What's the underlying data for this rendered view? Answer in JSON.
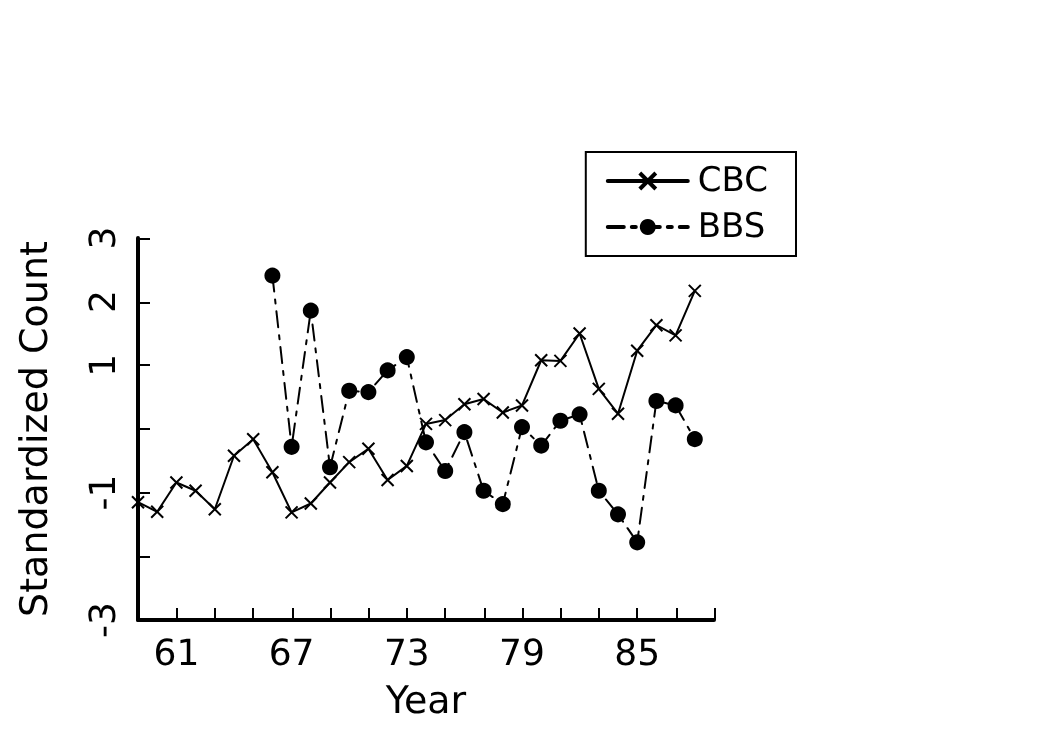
{
  "chart_data": {
    "type": "line",
    "xlabel": "Year",
    "ylabel": "Standardized Count",
    "x": [
      59,
      60,
      61,
      62,
      63,
      64,
      65,
      66,
      67,
      68,
      69,
      70,
      71,
      72,
      73,
      74,
      75,
      76,
      77,
      78,
      79,
      80,
      81,
      82,
      83,
      84,
      85,
      86,
      87,
      88
    ],
    "series": [
      {
        "name": "CBC",
        "color": "#000000",
        "marker": "cross",
        "line_style": "solid",
        "values": [
          -1.15,
          -1.3,
          -0.84,
          -0.97,
          -1.26,
          -0.42,
          -0.16,
          -0.68,
          -1.31,
          -1.17,
          -0.84,
          -0.52,
          -0.31,
          -0.8,
          -0.58,
          0.08,
          0.14,
          0.39,
          0.47,
          0.26,
          0.37,
          1.08,
          1.07,
          1.5,
          0.63,
          0.24,
          1.23,
          1.63,
          1.47,
          2.17
        ]
      },
      {
        "name": "BBS",
        "color": "#000000",
        "marker": "circle",
        "line_style": "dashed",
        "values": [
          null,
          null,
          null,
          null,
          null,
          null,
          null,
          2.41,
          -0.28,
          1.86,
          -0.6,
          0.6,
          0.58,
          0.92,
          1.13,
          -0.21,
          -0.66,
          -0.05,
          -0.97,
          -1.18,
          0.03,
          -0.26,
          0.13,
          0.23,
          -0.97,
          -1.34,
          -1.78,
          0.44,
          0.37,
          -0.16
        ]
      }
    ],
    "xlim": [
      59,
      89
    ],
    "xticks": [
      {
        "value": 59,
        "label": null
      },
      61,
      {
        "value": 63,
        "label": null
      },
      {
        "value": 65,
        "label": null
      },
      67,
      {
        "value": 69,
        "label": null
      },
      {
        "value": 71,
        "label": null
      },
      73,
      {
        "value": 75,
        "label": null
      },
      {
        "value": 77,
        "label": null
      },
      79,
      {
        "value": 81,
        "label": null
      },
      {
        "value": 83,
        "label": null
      },
      85,
      {
        "value": 87,
        "label": null
      },
      {
        "value": 89,
        "label": null
      }
    ],
    "ylim": [
      -3,
      3
    ],
    "yticks": [
      -3,
      {
        "value": -2,
        "label": null
      },
      -1,
      {
        "value": 0,
        "label": null
      },
      1,
      2,
      3
    ],
    "legend": "top right",
    "grid": false
  }
}
